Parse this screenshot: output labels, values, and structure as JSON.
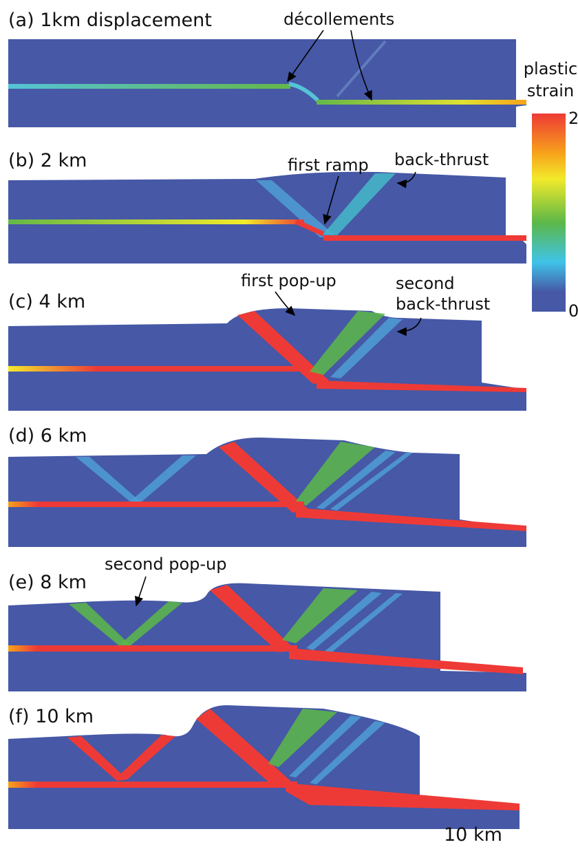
{
  "panels": [
    {
      "label": "(a) 1km displacement"
    },
    {
      "label": "(b) 2 km"
    },
    {
      "label": "(c) 4 km"
    },
    {
      "label": "(d) 6 km"
    },
    {
      "label": "(e) 8 km"
    },
    {
      "label": "(f) 10 km"
    }
  ],
  "annotations": [
    {
      "text": "décollements"
    },
    {
      "text": "first ramp"
    },
    {
      "text": "back-thrust"
    },
    {
      "text": "first pop-up"
    },
    {
      "lines": [
        "second",
        "back-thrust"
      ]
    },
    {
      "text": "second pop-up"
    }
  ],
  "colorbar": {
    "title": [
      "plastic",
      "strain"
    ],
    "max": 2,
    "min": 0
  },
  "scale_bar": "10 km"
}
